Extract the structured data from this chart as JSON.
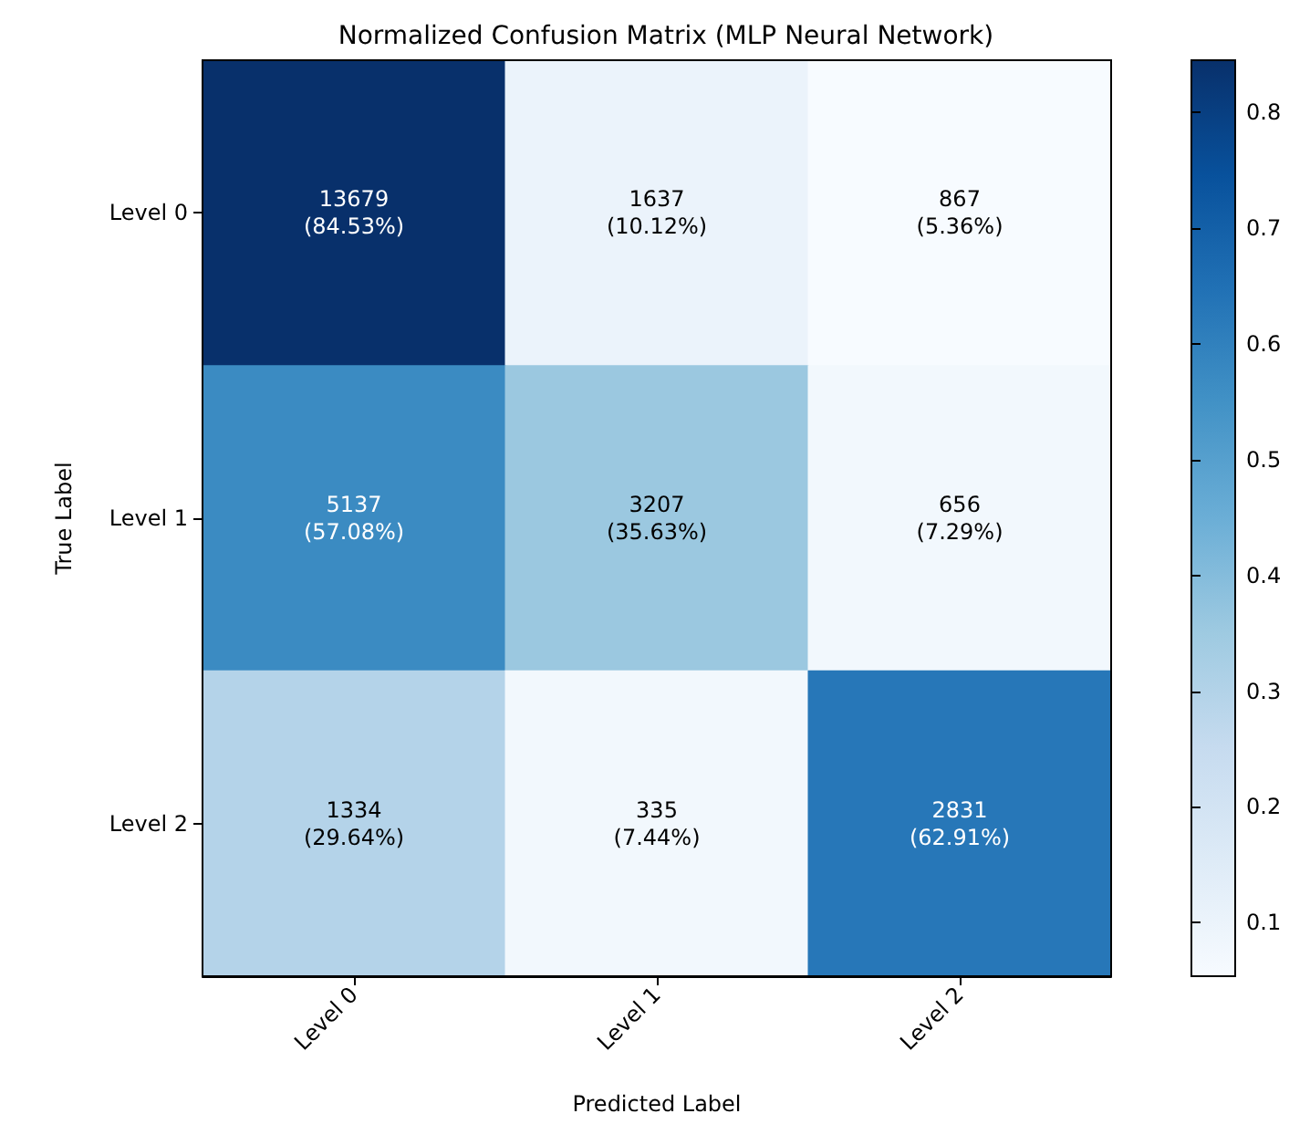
{
  "chart_data": {
    "type": "heatmap",
    "title": "Normalized Confusion Matrix (MLP Neural Network)",
    "xlabel": "Predicted Label",
    "ylabel": "True Label",
    "categories": [
      "Level 0",
      "Level 1",
      "Level 2"
    ],
    "y_categories": [
      "Level 0",
      "Level 1",
      "Level 2"
    ],
    "cells": [
      [
        0.8453,
        0.1012,
        0.0536
      ],
      [
        0.5708,
        0.3563,
        0.0729
      ],
      [
        0.2964,
        0.0744,
        0.6291
      ]
    ],
    "cell_labels": [
      [
        "13679\n(84.53%)",
        "1637\n(10.12%)",
        "867\n(5.36%)"
      ],
      [
        "5137\n(57.08%)",
        "3207\n(35.63%)",
        "656\n(7.29%)"
      ],
      [
        "1334\n(29.64%)",
        "335\n(7.44%)",
        "2831\n(62.91%)"
      ]
    ],
    "clim": [
      0.0536,
      0.8453
    ],
    "cticks": [
      0.1,
      0.2,
      0.3,
      0.4,
      0.5,
      0.6,
      0.7,
      0.8
    ]
  }
}
